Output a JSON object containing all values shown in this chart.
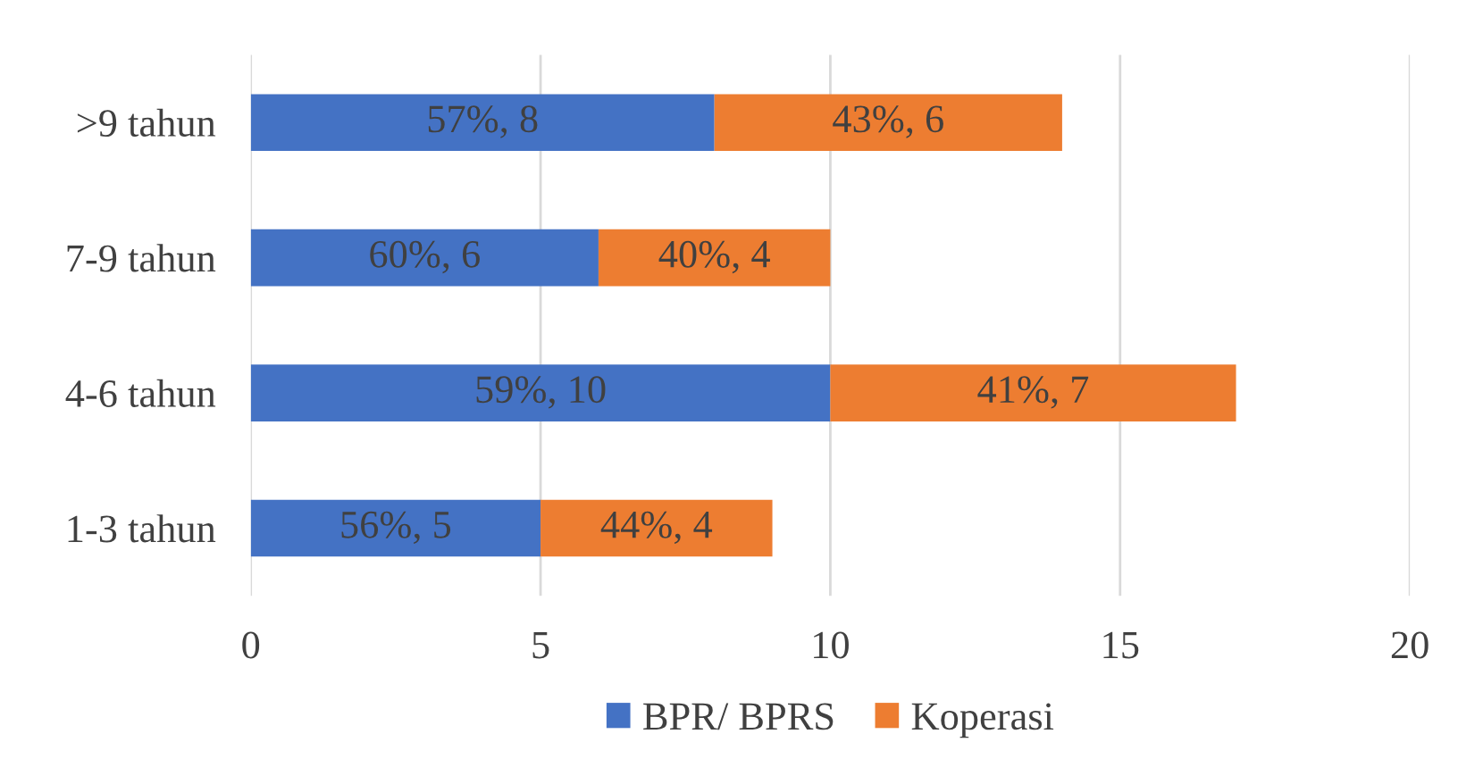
{
  "chart_data": {
    "type": "bar",
    "orientation": "horizontal",
    "stacked": true,
    "categories": [
      ">9 tahun",
      "7-9 tahun",
      "4-6 tahun",
      "1-3 tahun"
    ],
    "series": [
      {
        "name": "BPR/ BPRS",
        "color": "#4472c4",
        "values": [
          8,
          6,
          10,
          5
        ],
        "value_labels": [
          "57%, 8",
          "60%, 6",
          "59%, 10",
          "56%, 5"
        ]
      },
      {
        "name": "Koperasi",
        "color": "#ed7d31",
        "values": [
          6,
          4,
          7,
          4
        ],
        "value_labels": [
          "43%, 6",
          "40%, 4",
          "41%, 7",
          "44%, 4"
        ]
      }
    ],
    "xlim": [
      0,
      20
    ],
    "xticks": [
      0,
      5,
      10,
      15,
      20
    ],
    "grid": "x",
    "legend": "bottom"
  }
}
